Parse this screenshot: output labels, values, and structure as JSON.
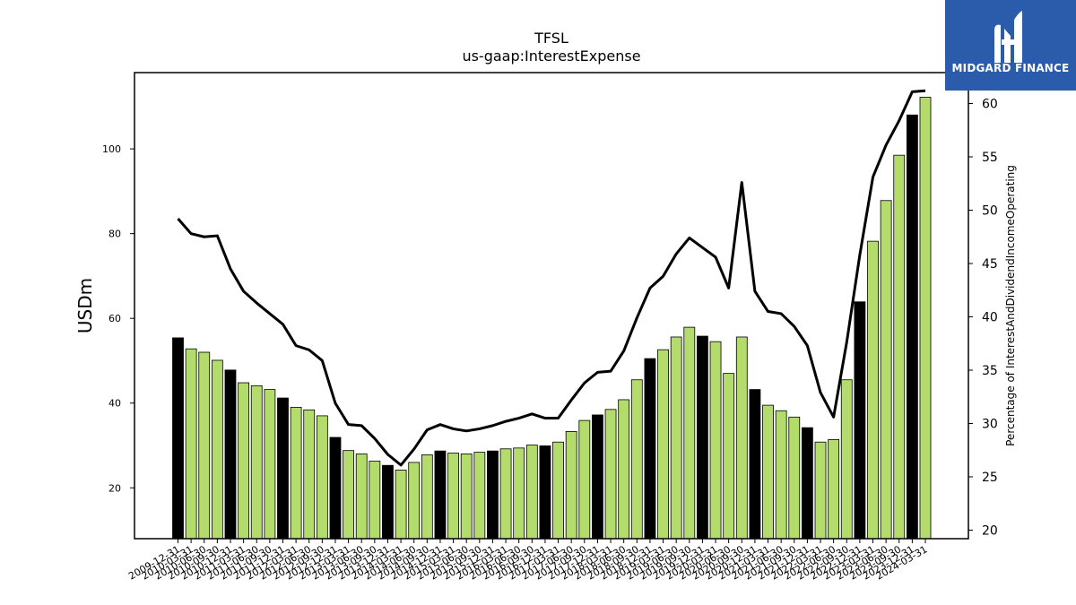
{
  "brand": {
    "name": "MIDGARD FINANCE",
    "bg_color": "#2b5bab",
    "icon": "midgard-m-logo-icon"
  },
  "chart_data": {
    "type": "bar",
    "title": "TFSL",
    "subtitle": "us-gaap:InterestExpense",
    "ylabel": "USDm",
    "y2label": "Percentage of InterestAndDividendIncomeOperating",
    "ylim": [
      8,
      118
    ],
    "y2lim": [
      19.2,
      62.9
    ],
    "yticks": [
      20,
      40,
      60,
      80,
      100
    ],
    "y2ticks": [
      20,
      25,
      30,
      35,
      40,
      45,
      50,
      55,
      60
    ],
    "bar_colors": {
      "fiscal_year_end": "#000000",
      "quarter": "#b3dc6c"
    },
    "line_color": "#000000",
    "grid": false,
    "categories": [
      "2009-12-31",
      "2010-03-31",
      "2010-06-30",
      "2010-09-30",
      "2010-12-31",
      "2011-03-31",
      "2011-06-30",
      "2011-09-30",
      "2011-12-31",
      "2012-03-31",
      "2012-06-30",
      "2012-09-30",
      "2012-12-31",
      "2013-03-31",
      "2013-06-30",
      "2013-09-30",
      "2013-12-31",
      "2014-03-31",
      "2014-06-30",
      "2014-09-30",
      "2014-12-31",
      "2015-03-31",
      "2015-06-30",
      "2015-09-30",
      "2015-12-31",
      "2016-03-31",
      "2016-06-30",
      "2016-09-30",
      "2016-12-31",
      "2017-03-31",
      "2017-06-30",
      "2017-09-30",
      "2017-12-31",
      "2018-03-31",
      "2018-06-30",
      "2018-09-30",
      "2018-12-31",
      "2019-03-31",
      "2019-06-30",
      "2019-09-30",
      "2019-12-31",
      "2020-03-31",
      "2020-06-30",
      "2020-09-30",
      "2020-12-31",
      "2021-03-31",
      "2021-06-30",
      "2021-09-30",
      "2021-12-31",
      "2022-03-31",
      "2022-06-30",
      "2022-09-30",
      "2022-12-31",
      "2023-03-31",
      "2023-06-30",
      "2023-09-30",
      "2023-12-31",
      "2024-03-31"
    ],
    "series": [
      {
        "type": "bar",
        "values": [
          55.4,
          52.8,
          52.0,
          50.1,
          47.8,
          44.8,
          44.1,
          43.2,
          41.2,
          39.0,
          38.4,
          37.0,
          31.9,
          28.8,
          28.0,
          26.3,
          25.3,
          24.2,
          26.0,
          27.8,
          28.7,
          28.2,
          28.0,
          28.4,
          28.7,
          29.2,
          29.4,
          30.1,
          29.9,
          30.8,
          33.3,
          35.9,
          37.2,
          38.5,
          40.8,
          45.5,
          50.5,
          52.6,
          55.6,
          57.9,
          55.8,
          54.5,
          47.0,
          55.6,
          43.2,
          39.5,
          38.2,
          36.7,
          34.2,
          30.8,
          31.4,
          45.5,
          63.9,
          78.2,
          87.8,
          98.5,
          108.0,
          112.2
        ],
        "fiscal_year_end": [
          true,
          false,
          false,
          false,
          true,
          false,
          false,
          false,
          true,
          false,
          false,
          false,
          true,
          false,
          false,
          false,
          true,
          false,
          false,
          false,
          true,
          false,
          false,
          false,
          true,
          false,
          false,
          false,
          true,
          false,
          false,
          false,
          true,
          false,
          false,
          false,
          true,
          false,
          false,
          false,
          true,
          false,
          false,
          false,
          true,
          false,
          false,
          false,
          true,
          false,
          false,
          false,
          true,
          false,
          false,
          false,
          true,
          false
        ]
      },
      {
        "type": "line",
        "axis": "right",
        "values": [
          49.2,
          47.8,
          47.5,
          47.6,
          44.5,
          42.4,
          41.3,
          40.3,
          39.3,
          37.3,
          36.9,
          35.9,
          31.9,
          29.9,
          29.8,
          28.6,
          27.1,
          26.1,
          27.6,
          29.4,
          29.9,
          29.5,
          29.3,
          29.5,
          29.8,
          30.2,
          30.5,
          30.9,
          30.5,
          30.5,
          32.2,
          33.8,
          34.8,
          34.9,
          36.8,
          39.9,
          42.7,
          43.8,
          45.9,
          47.4,
          46.5,
          45.6,
          42.7,
          52.6,
          42.4,
          40.5,
          40.3,
          39.1,
          37.3,
          32.9,
          30.6,
          37.6,
          45.8,
          53.1,
          56.1,
          58.4,
          61.1,
          61.2
        ]
      }
    ]
  }
}
